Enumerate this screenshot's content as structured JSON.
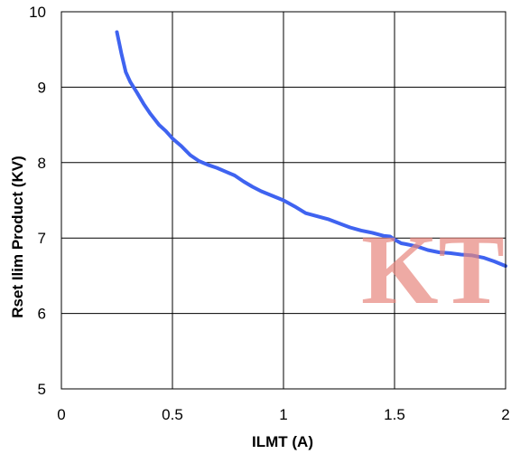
{
  "chart_data": {
    "type": "line",
    "title": "",
    "xlabel": "ILMT (A)",
    "ylabel": "Rset Ilim Product (KV)",
    "xlim": [
      0,
      2
    ],
    "ylim": [
      5,
      10
    ],
    "grid": true,
    "x_ticks": [
      "0",
      "0.5",
      "1",
      "1.5",
      "2"
    ],
    "y_ticks": [
      "5",
      "6",
      "7",
      "8",
      "9",
      "10"
    ],
    "series": [
      {
        "color": "#3f63f0",
        "x": [
          0.25,
          0.27,
          0.29,
          0.31,
          0.34,
          0.37,
          0.4,
          0.44,
          0.47,
          0.5,
          0.54,
          0.58,
          0.62,
          0.66,
          0.7,
          0.74,
          0.78,
          0.82,
          0.86,
          0.9,
          0.95,
          1.0,
          1.05,
          1.1,
          1.2,
          1.3,
          1.35,
          1.4,
          1.45,
          1.48,
          1.5,
          1.53,
          1.55,
          1.6,
          1.65,
          1.7,
          1.75,
          1.8,
          1.85,
          1.9,
          1.95,
          2.0
        ],
        "y": [
          9.73,
          9.45,
          9.2,
          9.07,
          8.93,
          8.78,
          8.65,
          8.5,
          8.42,
          8.32,
          8.22,
          8.1,
          8.02,
          7.97,
          7.93,
          7.88,
          7.83,
          7.75,
          7.68,
          7.62,
          7.56,
          7.5,
          7.42,
          7.33,
          7.25,
          7.14,
          7.1,
          7.07,
          7.03,
          7.02,
          6.98,
          6.93,
          6.92,
          6.89,
          6.84,
          6.81,
          6.8,
          6.78,
          6.77,
          6.74,
          6.69,
          6.63
        ]
      }
    ]
  },
  "watermark": {
    "text": "KT"
  }
}
